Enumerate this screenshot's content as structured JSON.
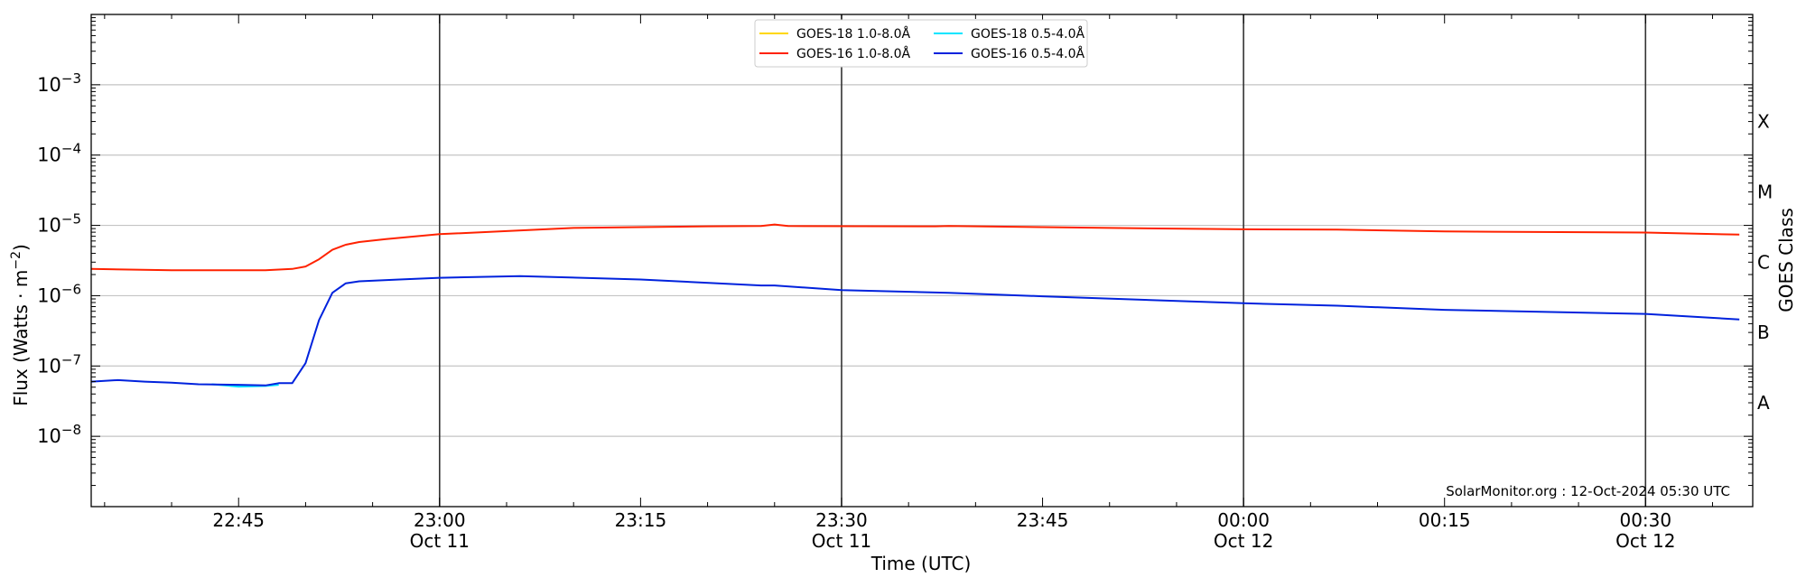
{
  "chart_data": {
    "type": "line",
    "title": "",
    "xlabel": "Time (UTC)",
    "ylabel_main": "Flux (Watts · m",
    "ylabel_sup": "−2",
    "ylabel_end": ")",
    "ylabel_right": "GOES Class",
    "credit": "SolarMonitor.org : 12-Oct-2024 05:30 UTC",
    "y_scale": "log",
    "ylim": [
      1e-09,
      0.01
    ],
    "y_ticks": [
      {
        "exp": 3,
        "value": 0.001
      },
      {
        "exp": 4,
        "value": 0.0001
      },
      {
        "exp": 5,
        "value": 1e-05
      },
      {
        "exp": 6,
        "value": 1e-06
      },
      {
        "exp": 7,
        "value": 1e-07
      },
      {
        "exp": 8,
        "value": 1e-08
      }
    ],
    "xlim": [
      "2024-10-11T22:34",
      "2024-10-12T00:38"
    ],
    "x_ticks": [
      {
        "t": "2024-10-11T22:45",
        "label": "22:45",
        "sub": ""
      },
      {
        "t": "2024-10-11T23:00",
        "label": "23:00",
        "sub": "Oct 11"
      },
      {
        "t": "2024-10-11T23:15",
        "label": "23:15",
        "sub": ""
      },
      {
        "t": "2024-10-11T23:30",
        "label": "23:30",
        "sub": "Oct 11"
      },
      {
        "t": "2024-10-11T23:45",
        "label": "23:45",
        "sub": ""
      },
      {
        "t": "2024-10-12T00:00",
        "label": "00:00",
        "sub": "Oct 12"
      },
      {
        "t": "2024-10-12T00:15",
        "label": "00:15",
        "sub": ""
      },
      {
        "t": "2024-10-12T00:30",
        "label": "00:30",
        "sub": "Oct 12"
      }
    ],
    "vertical_lines": [
      "2024-10-11T23:00",
      "2024-10-11T23:30",
      "2024-10-12T00:00",
      "2024-10-12T00:30"
    ],
    "goes_classes": [
      {
        "label": "A",
        "value": 3e-08
      },
      {
        "label": "B",
        "value": 3e-07
      },
      {
        "label": "C",
        "value": 3e-06
      },
      {
        "label": "M",
        "value": 3e-05
      },
      {
        "label": "X",
        "value": 0.0003
      }
    ],
    "grid": "horizontal",
    "legend_position": "top-center",
    "series": [
      {
        "name": "GOES-18 1.0-8.0Å",
        "color": "#ffd700",
        "points": []
      },
      {
        "name": "GOES-18 0.5-4.0Å",
        "color": "#00e5ff",
        "points": [
          [
            "2024-10-11T22:43",
            5.5e-08
          ],
          [
            "2024-10-11T22:45",
            5.1e-08
          ],
          [
            "2024-10-11T22:47",
            5.2e-08
          ],
          [
            "2024-10-11T22:48",
            5.4e-08
          ]
        ]
      },
      {
        "name": "GOES-16 1.0-8.0Å",
        "color": "#ff2200",
        "points": [
          [
            "2024-10-11T22:34",
            2.4e-06
          ],
          [
            "2024-10-11T22:40",
            2.3e-06
          ],
          [
            "2024-10-11T22:43",
            2.3e-06
          ],
          [
            "2024-10-11T22:47",
            2.3e-06
          ],
          [
            "2024-10-11T22:49",
            2.4e-06
          ],
          [
            "2024-10-11T22:50",
            2.6e-06
          ],
          [
            "2024-10-11T22:51",
            3.3e-06
          ],
          [
            "2024-10-11T22:52",
            4.5e-06
          ],
          [
            "2024-10-11T22:53",
            5.3e-06
          ],
          [
            "2024-10-11T22:54",
            5.8e-06
          ],
          [
            "2024-10-11T22:56",
            6.4e-06
          ],
          [
            "2024-10-11T23:00",
            7.5e-06
          ],
          [
            "2024-10-11T23:05",
            8.3e-06
          ],
          [
            "2024-10-11T23:10",
            9.2e-06
          ],
          [
            "2024-10-11T23:20",
            9.7e-06
          ],
          [
            "2024-10-11T23:24",
            9.8e-06
          ],
          [
            "2024-10-11T23:25",
            1.03e-05
          ],
          [
            "2024-10-11T23:26",
            9.8e-06
          ],
          [
            "2024-10-11T23:37",
            9.7e-06
          ],
          [
            "2024-10-11T23:38",
            9.8e-06
          ],
          [
            "2024-10-11T23:50",
            9.2e-06
          ],
          [
            "2024-10-12T00:00",
            8.8e-06
          ],
          [
            "2024-10-12T00:07",
            8.7e-06
          ],
          [
            "2024-10-12T00:15",
            8.2e-06
          ],
          [
            "2024-10-12T00:30",
            7.9e-06
          ],
          [
            "2024-10-12T00:37",
            7.4e-06
          ]
        ]
      },
      {
        "name": "GOES-16 0.5-4.0Å",
        "color": "#0022dd",
        "points": [
          [
            "2024-10-11T22:34",
            6e-08
          ],
          [
            "2024-10-11T22:36",
            6.3e-08
          ],
          [
            "2024-10-11T22:38",
            6e-08
          ],
          [
            "2024-10-11T22:40",
            5.8e-08
          ],
          [
            "2024-10-11T22:42",
            5.5e-08
          ],
          [
            "2024-10-11T22:45",
            5.4e-08
          ],
          [
            "2024-10-11T22:47",
            5.3e-08
          ],
          [
            "2024-10-11T22:48",
            5.7e-08
          ],
          [
            "2024-10-11T22:49",
            5.7e-08
          ],
          [
            "2024-10-11T22:50",
            1.1e-07
          ],
          [
            "2024-10-11T22:51",
            4.5e-07
          ],
          [
            "2024-10-11T22:52",
            1.1e-06
          ],
          [
            "2024-10-11T22:53",
            1.5e-06
          ],
          [
            "2024-10-11T22:54",
            1.6e-06
          ],
          [
            "2024-10-11T22:57",
            1.7e-06
          ],
          [
            "2024-10-11T23:00",
            1.8e-06
          ],
          [
            "2024-10-11T23:06",
            1.9e-06
          ],
          [
            "2024-10-11T23:15",
            1.7e-06
          ],
          [
            "2024-10-11T23:24",
            1.4e-06
          ],
          [
            "2024-10-11T23:25",
            1.4e-06
          ],
          [
            "2024-10-11T23:30",
            1.2e-06
          ],
          [
            "2024-10-11T23:38",
            1.1e-06
          ],
          [
            "2024-10-11T23:45",
            9.8e-07
          ],
          [
            "2024-10-12T00:00",
            7.8e-07
          ],
          [
            "2024-10-12T00:07",
            7.2e-07
          ],
          [
            "2024-10-12T00:15",
            6.3e-07
          ],
          [
            "2024-10-12T00:30",
            5.5e-07
          ],
          [
            "2024-10-12T00:37",
            4.6e-07
          ]
        ]
      }
    ]
  }
}
